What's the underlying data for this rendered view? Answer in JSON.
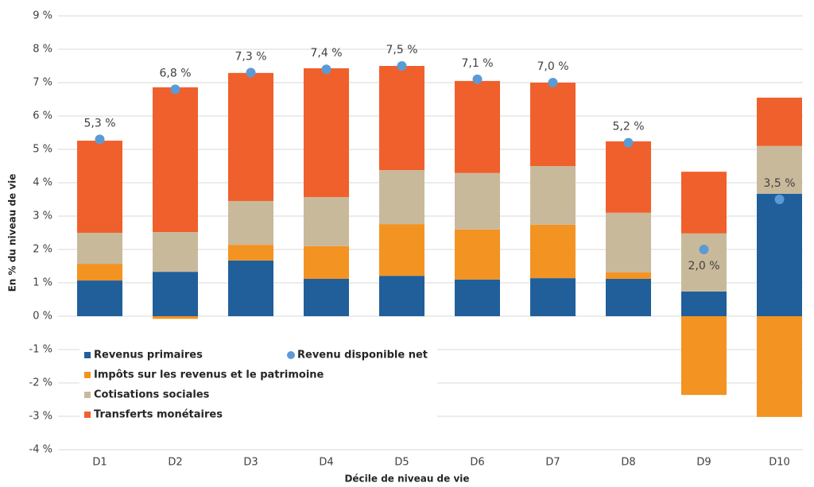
{
  "chart_data": {
    "type": "bar",
    "stacked": true,
    "x_label": "Décile de niveau de vie",
    "y_label": "En % du niveau de vie",
    "categories": [
      "D1",
      "D2",
      "D3",
      "D4",
      "D5",
      "D6",
      "D7",
      "D8",
      "D9",
      "D10"
    ],
    "series": [
      {
        "name": "Revenus primaires",
        "color": "#215f9a",
        "values": [
          1.07,
          1.33,
          1.67,
          1.12,
          1.21,
          1.1,
          1.14,
          1.12,
          0.74,
          3.67
        ]
      },
      {
        "name": "Impôts sur les revenus et le patrimoine",
        "color": "#f39322",
        "values": [
          0.5,
          -0.08,
          0.47,
          0.98,
          1.55,
          1.5,
          1.6,
          0.19,
          -2.36,
          -3.02
        ]
      },
      {
        "name": "Cotisations sociales",
        "color": "#c9b99b",
        "values": [
          0.93,
          1.19,
          1.31,
          1.47,
          1.62,
          1.69,
          1.76,
          1.79,
          1.74,
          1.43
        ]
      },
      {
        "name": "Transferts monétaires",
        "color": "#f0602c",
        "values": [
          2.76,
          4.34,
          3.84,
          3.86,
          3.12,
          2.76,
          2.5,
          2.14,
          1.85,
          1.45
        ]
      },
      {
        "name": "Revenu disponible net",
        "type": "scatter",
        "color": "#5b9bd5",
        "values": [
          5.3,
          6.8,
          7.3,
          7.4,
          7.5,
          7.1,
          7.0,
          5.2,
          2.0,
          3.5
        ],
        "value_labels": [
          "5,3 %",
          "6,8 %",
          "7,3 %",
          "7,4 %",
          "7,5 %",
          "7,1 %",
          "7,0 %",
          "5,2 %",
          "2,0 %",
          "3,5 %"
        ]
      }
    ],
    "ylim": [
      -4,
      9
    ],
    "yticks": [
      {
        "value": -4,
        "label": "-4 %"
      },
      {
        "value": -3,
        "label": "-3 %"
      },
      {
        "value": -2,
        "label": "-2 %"
      },
      {
        "value": -1,
        "label": "-1 %"
      },
      {
        "value": 0,
        "label": "0 %"
      },
      {
        "value": 1,
        "label": "1 %"
      },
      {
        "value": 2,
        "label": "2 %"
      },
      {
        "value": 3,
        "label": "3 %"
      },
      {
        "value": 4,
        "label": "4 %"
      },
      {
        "value": 5,
        "label": "5 %"
      },
      {
        "value": 6,
        "label": "6 %"
      },
      {
        "value": 7,
        "label": "7 %"
      },
      {
        "value": 8,
        "label": "8 %"
      },
      {
        "value": 9,
        "label": "9 %"
      }
    ],
    "grid": true
  }
}
